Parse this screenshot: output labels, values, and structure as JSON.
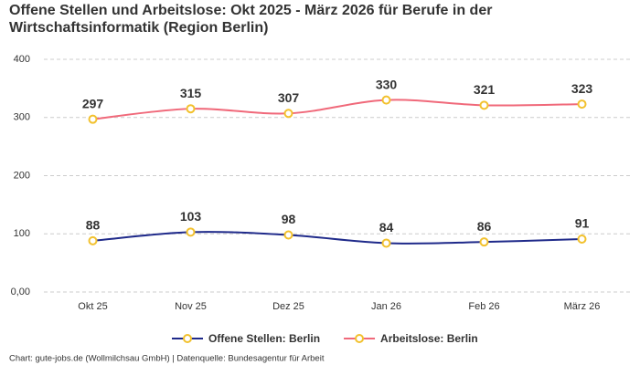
{
  "chart_data": {
    "type": "line",
    "title": "Offene Stellen und Arbeitslose: Okt 2025 - März 2026 für Berufe in der Wirtschaftsinformatik (Region Berlin)",
    "categories": [
      "Okt 25",
      "Nov 25",
      "Dez 25",
      "Jan 26",
      "Feb 26",
      "März 26"
    ],
    "series": [
      {
        "name": "Offene Stellen: Berlin",
        "color": "#1f2a8a",
        "values": [
          88,
          103,
          98,
          84,
          86,
          91
        ]
      },
      {
        "name": "Arbeitslose: Berlin",
        "color": "#f0697a",
        "values": [
          297,
          315,
          307,
          330,
          321,
          323
        ]
      }
    ],
    "marker_color": "#f2c12e",
    "ylim": [
      0,
      400
    ],
    "yticks": [
      {
        "value": 0,
        "label": "0,00"
      },
      100,
      200,
      300,
      400
    ],
    "grid": true,
    "legend": "bottom",
    "source": "Chart: gute-jobs.de (Wollmilchsau GmbH) | Datenquelle: Bundesagentur für Arbeit"
  }
}
